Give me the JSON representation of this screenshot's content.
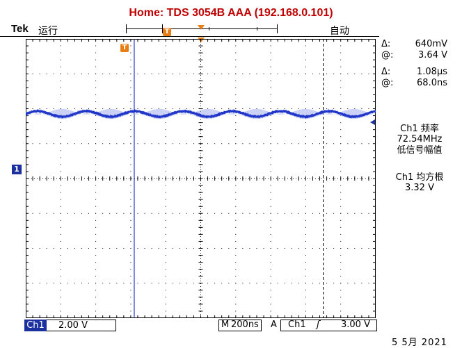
{
  "header": {
    "title": "Home:  TDS 3054B  AAA  (192.168.0.101)",
    "brand": "Tek",
    "run_state": "运行",
    "trigger_mode": "自动",
    "trigger_marker": "T"
  },
  "readouts": {
    "voltage_delta_label": "Δ:",
    "voltage_delta_value": "640mV",
    "voltage_at_label": "@:",
    "voltage_at_value": "3.64 V",
    "time_delta_label": "Δ:",
    "time_delta_value": "1.08μs",
    "time_at_label": "@:",
    "time_at_value": "68.0ns"
  },
  "measurements": {
    "freq_title": "Ch1 频率",
    "freq_value": "72.54MHz",
    "freq_note": "低信号幅值",
    "rms_title": "Ch1 均方根",
    "rms_value": "3.32 V"
  },
  "channel_marker": "1",
  "bottom_bar": {
    "channel_label": "Ch1",
    "volts_per_div": "2.00 V",
    "timebase_label": "M",
    "timebase_value": "200ns",
    "trigger_label": "A",
    "trigger_source": "Ch1",
    "trigger_slope": "ʃ",
    "trigger_level": "3.00 V"
  },
  "date": "5 5月  2021",
  "colors": {
    "title": "#c00000",
    "trace": "#1f36c8",
    "trace_envelope": "#aab4ee",
    "marker_orange": "#e87e14",
    "channel_blue": "#1c2f9e",
    "cursor": "#1f2fc0"
  },
  "chart_data": {
    "type": "line",
    "title": "Ch1 waveform",
    "xlabel": "",
    "ylabel": "",
    "x_divisions": 10,
    "y_divisions": 8,
    "volts_per_div": 2.0,
    "time_per_div_ns": 200,
    "series": [
      {
        "name": "Ch1",
        "description": "sine ripple around 3.64 V",
        "offset_div": 1.85,
        "amplitude_div": 0.08,
        "cycles_on_screen": 7.2,
        "noise_div": 0.04
      }
    ],
    "cursor_vertical_div": [
      3.1,
      8.5
    ]
  }
}
